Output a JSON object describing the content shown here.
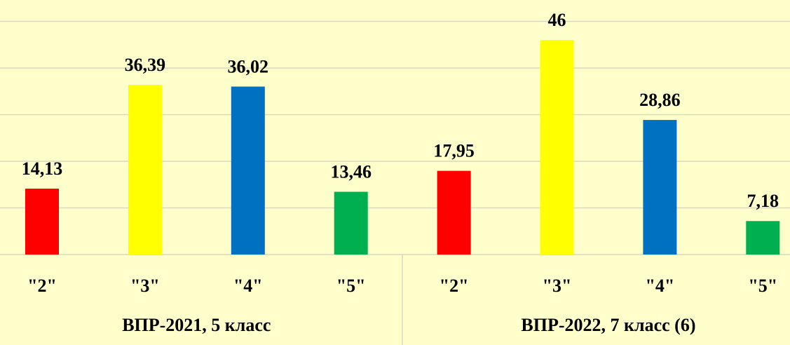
{
  "chart_data": {
    "type": "bar",
    "colors": [
      "#ff0000",
      "#ffff00",
      "#0070c0",
      "#00b050"
    ],
    "ylim": [
      0,
      50
    ],
    "yticks": [
      0,
      10,
      20,
      30,
      40,
      50
    ],
    "grid": true,
    "groups": [
      {
        "name": "ВПР-2021, 5 класс",
        "categories": [
          "\"2\"",
          "\"3\"",
          "\"4\"",
          "\"5\""
        ],
        "values": [
          14.13,
          36.39,
          36.02,
          13.46
        ],
        "value_labels": [
          "14,13",
          "36,39",
          "36,02",
          "13,46"
        ]
      },
      {
        "name": "ВПР-2022, 7 класс (6)",
        "categories": [
          "\"2\"",
          "\"3\"",
          "\"4\"",
          "\"5\""
        ],
        "values": [
          17.95,
          46,
          28.86,
          7.18
        ],
        "value_labels": [
          "17,95",
          "46",
          "28,86",
          "7,18"
        ]
      }
    ]
  }
}
